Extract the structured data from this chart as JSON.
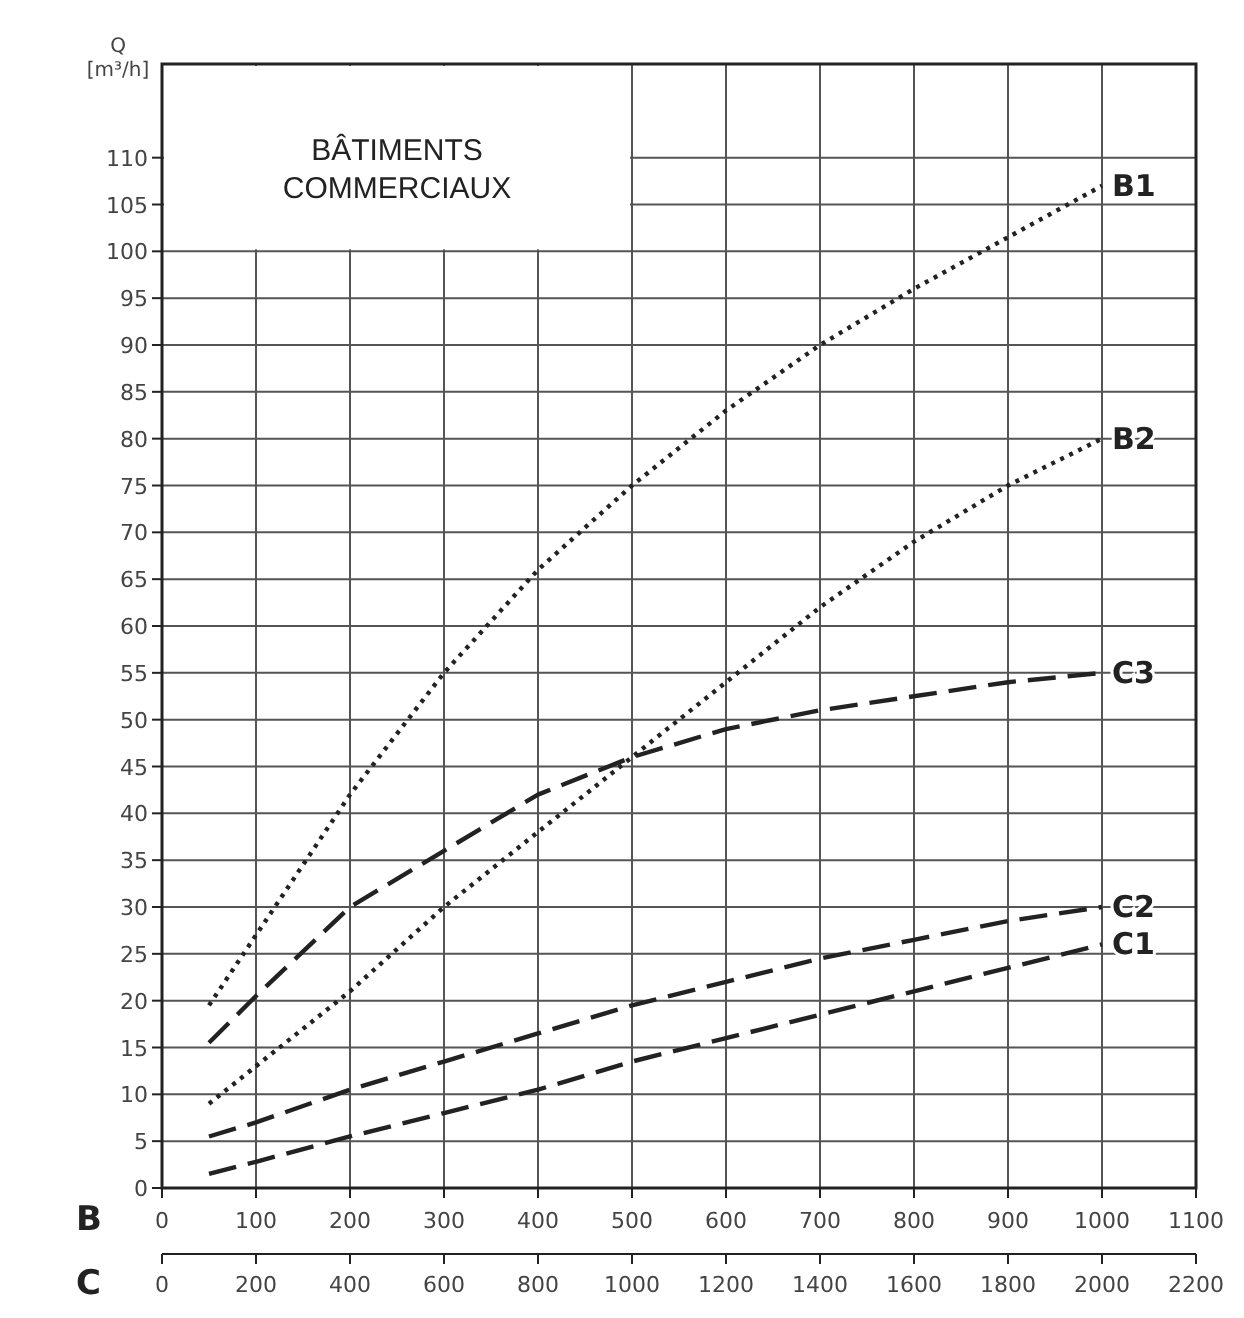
{
  "chart_data": {
    "type": "line",
    "title": "BÂTIMENTS\nCOMMERCIAUX",
    "ylabel": "Q\n[m³/h]",
    "xlabel": "B",
    "x2label": "C",
    "xlim": [
      0,
      1100
    ],
    "xticks": [
      0,
      100,
      200,
      300,
      400,
      500,
      600,
      700,
      800,
      900,
      1000,
      1100
    ],
    "x2lim": [
      0,
      2200
    ],
    "x2ticks": [
      0,
      200,
      400,
      600,
      800,
      1000,
      1200,
      1400,
      1600,
      1800,
      2000,
      2200
    ],
    "ylim": [
      0,
      120
    ],
    "yticks": [
      0,
      5,
      10,
      15,
      20,
      25,
      30,
      35,
      40,
      45,
      50,
      55,
      60,
      65,
      70,
      75,
      80,
      85,
      90,
      95,
      100,
      105,
      110
    ],
    "grid": true,
    "legend": false,
    "marker": "none",
    "series": [
      {
        "name": "B1",
        "color": "#222222",
        "line_style": "dotted",
        "x": [
          50,
          100,
          200,
          300,
          400,
          500,
          600,
          700,
          800,
          900,
          1000
        ],
        "values": [
          19.5,
          27,
          42,
          55,
          66,
          75,
          83,
          90,
          96,
          101.5,
          107
        ]
      },
      {
        "name": "B2",
        "color": "#222222",
        "line_style": "dotted",
        "x": [
          50,
          100,
          200,
          300,
          400,
          500,
          600,
          700,
          800,
          900,
          1000
        ],
        "values": [
          9,
          13,
          21,
          30,
          38,
          46,
          54,
          62,
          69,
          75,
          80
        ]
      },
      {
        "name": "C3",
        "color": "#222222",
        "line_style": "dashed",
        "axis": "x2",
        "x": [
          100,
          200,
          400,
          600,
          800,
          1000,
          1200,
          1400,
          1600,
          1800,
          2000
        ],
        "values": [
          15.5,
          20.5,
          30,
          36,
          42,
          46,
          49,
          51,
          52.5,
          54,
          55
        ]
      },
      {
        "name": "C2",
        "color": "#222222",
        "line_style": "dashed",
        "axis": "x2",
        "x": [
          100,
          200,
          400,
          600,
          800,
          1000,
          1200,
          1400,
          1600,
          1800,
          2000
        ],
        "values": [
          5.5,
          7,
          10.5,
          13.5,
          16.5,
          19.5,
          22,
          24.5,
          26.5,
          28.5,
          30
        ]
      },
      {
        "name": "C1",
        "color": "#222222",
        "line_style": "dashed",
        "axis": "x2",
        "x": [
          100,
          200,
          400,
          600,
          800,
          1000,
          1200,
          1400,
          1600,
          1800,
          2000
        ],
        "values": [
          1.5,
          2.8,
          5.5,
          8,
          10.5,
          13.5,
          16,
          18.5,
          21,
          23.5,
          26
        ]
      }
    ]
  }
}
